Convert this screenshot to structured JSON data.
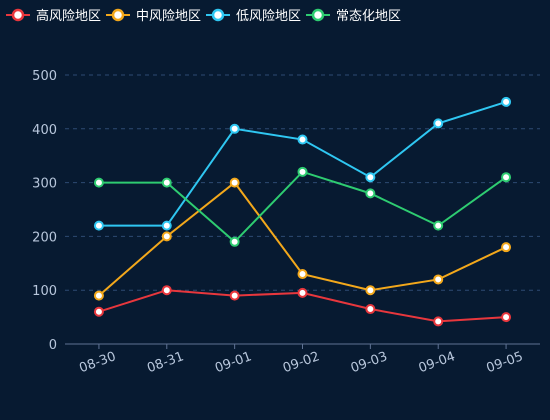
{
  "chart_data": {
    "type": "line",
    "title": "",
    "xlabel": "",
    "ylabel": "",
    "categories": [
      "08-30",
      "08-31",
      "09-01",
      "09-02",
      "09-03",
      "09-04",
      "09-05"
    ],
    "ylim": [
      0,
      500
    ],
    "yticks": [
      0,
      100,
      200,
      300,
      400,
      500
    ],
    "grid": true,
    "legend_position": "top-left",
    "series": [
      {
        "name": "高风险地区",
        "color": "#e8373d",
        "values": [
          60,
          100,
          90,
          95,
          65,
          42,
          50
        ]
      },
      {
        "name": "中风险地区",
        "color": "#f3a81b",
        "values": [
          90,
          200,
          300,
          130,
          100,
          120,
          180
        ]
      },
      {
        "name": "低风险地区",
        "color": "#2fc7f2",
        "values": [
          220,
          220,
          400,
          380,
          310,
          410,
          450
        ]
      },
      {
        "name": "常态化地区",
        "color": "#2ecc71",
        "values": [
          300,
          300,
          190,
          320,
          280,
          220,
          310
        ]
      }
    ]
  }
}
